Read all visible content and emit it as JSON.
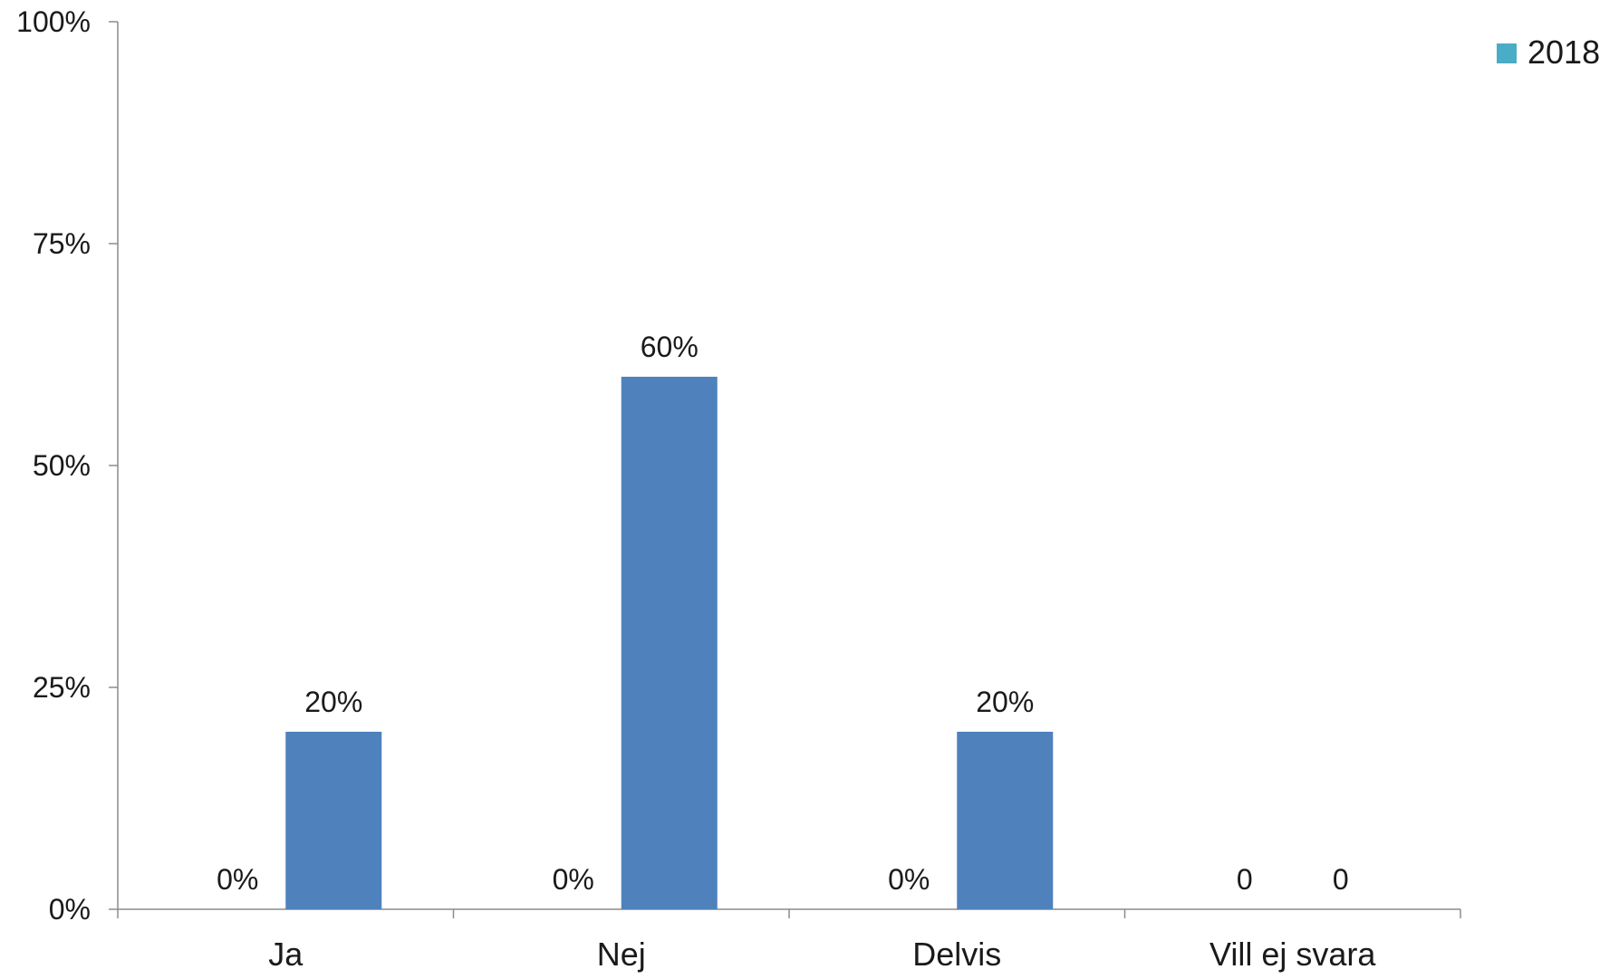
{
  "chart_data": {
    "type": "bar",
    "categories": [
      "Ja",
      "Nej",
      "Delvis",
      "Vill ej svara"
    ],
    "y_ticks": [
      "0%",
      "25%",
      "50%",
      "75%",
      "100%"
    ],
    "ylim": [
      0,
      100
    ],
    "grid": false,
    "legend_position": "top-right",
    "series": [
      {
        "name": "",
        "values": [
          0,
          0,
          0,
          0
        ],
        "labels": [
          "0%",
          "0%",
          "0%",
          "0"
        ],
        "color": "#4BACC6"
      },
      {
        "name": "2018",
        "values": [
          20,
          60,
          20,
          0
        ],
        "labels": [
          "20%",
          "60%",
          "20%",
          "0"
        ],
        "color": "#4F81BD"
      }
    ],
    "legend": [
      {
        "label": "2018",
        "color": "#4BACC6"
      }
    ]
  }
}
